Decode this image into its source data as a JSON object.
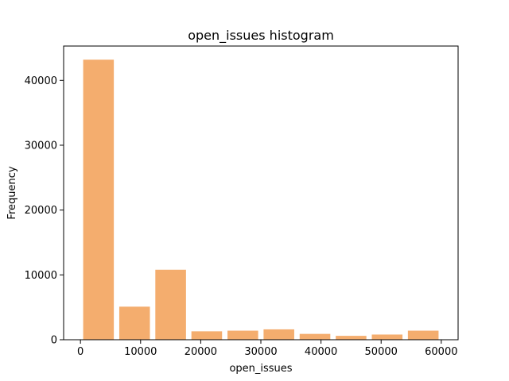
{
  "chart_data": {
    "type": "bar",
    "title": "open_issues histogram",
    "xlabel": "open_issues",
    "ylabel": "Frequency",
    "bar_color": "#f4ad6e",
    "xlim": [
      -2800,
      62800
    ],
    "ylim": [
      0,
      45300
    ],
    "xticks": [
      {
        "value": 0,
        "label": "0"
      },
      {
        "value": 10000,
        "label": "10000"
      },
      {
        "value": 20000,
        "label": "20000"
      },
      {
        "value": 30000,
        "label": "30000"
      },
      {
        "value": 40000,
        "label": "40000"
      },
      {
        "value": 50000,
        "label": "50000"
      },
      {
        "value": 60000,
        "label": "60000"
      }
    ],
    "yticks": [
      {
        "value": 0,
        "label": "0"
      },
      {
        "value": 10000,
        "label": "10000"
      },
      {
        "value": 20000,
        "label": "20000"
      },
      {
        "value": 30000,
        "label": "30000"
      },
      {
        "value": 40000,
        "label": "40000"
      }
    ],
    "bins": [
      {
        "start": 0,
        "end": 6000,
        "value": 43200
      },
      {
        "start": 6000,
        "end": 12000,
        "value": 5100
      },
      {
        "start": 12000,
        "end": 18000,
        "value": 10800
      },
      {
        "start": 18000,
        "end": 24000,
        "value": 1300
      },
      {
        "start": 24000,
        "end": 30000,
        "value": 1400
      },
      {
        "start": 30000,
        "end": 36000,
        "value": 1600
      },
      {
        "start": 36000,
        "end": 42000,
        "value": 900
      },
      {
        "start": 42000,
        "end": 48000,
        "value": 600
      },
      {
        "start": 48000,
        "end": 54000,
        "value": 800
      },
      {
        "start": 54000,
        "end": 60000,
        "value": 1400
      }
    ]
  }
}
